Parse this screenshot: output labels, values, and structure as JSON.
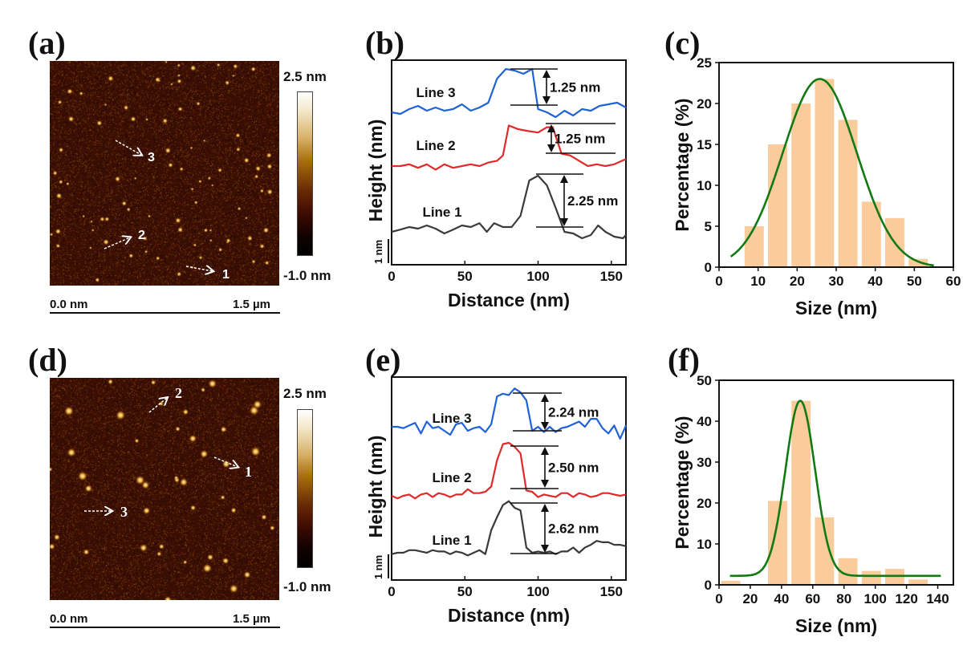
{
  "panels": {
    "a": {
      "label": "(a)",
      "colorbar_max": "2.5 nm",
      "colorbar_min": "-1.0 nm",
      "scale_start": "0.0 nm",
      "scale_end": "1.5 µm",
      "markers": [
        "1",
        "2",
        "3"
      ]
    },
    "b": {
      "label": "(b)"
    },
    "c": {
      "label": "(c)"
    },
    "d": {
      "label": "(d)",
      "colorbar_max": "2.5 nm",
      "colorbar_min": "-1.0 nm",
      "scale_start": "0.0 nm",
      "scale_end": "1.5 µm",
      "markers": [
        "1",
        "2",
        "3"
      ]
    },
    "e": {
      "label": "(e)"
    },
    "f": {
      "label": "(f)"
    }
  },
  "chart_data": [
    {
      "id": "b",
      "type": "line",
      "xlabel": "Distance (nm)",
      "ylabel": "Height (nm)",
      "xlim": [
        0,
        160
      ],
      "xticks": [
        0,
        50,
        100,
        150
      ],
      "scale_bar_label": "1 nm",
      "series": [
        {
          "name": "Line 3",
          "color": "#1f63d6",
          "offset": 2,
          "x": [
            0,
            6,
            12,
            18,
            24,
            30,
            36,
            42,
            48,
            54,
            60,
            66,
            72,
            78,
            84,
            90,
            96,
            100,
            106,
            112,
            118,
            124,
            130,
            136,
            142,
            148,
            154,
            160
          ],
          "y": [
            0.0,
            -0.05,
            0.1,
            0.2,
            0.05,
            0.15,
            0.05,
            0.1,
            0.25,
            0.05,
            0.15,
            0.3,
            1.05,
            1.35,
            1.3,
            1.2,
            1.35,
            0.1,
            0.0,
            -0.15,
            0.05,
            -0.1,
            0.1,
            0.05,
            0.2,
            0.25,
            0.3,
            0.15
          ],
          "annotation": "1.25 nm"
        },
        {
          "name": "Line 2",
          "color": "#e02a2a",
          "offset": 1,
          "x": [
            0,
            6,
            12,
            18,
            24,
            30,
            36,
            42,
            48,
            54,
            60,
            66,
            72,
            76,
            80,
            86,
            92,
            100,
            106,
            110,
            116,
            122,
            128,
            134,
            140,
            146,
            152,
            160
          ],
          "y": [
            0.0,
            0.0,
            0.05,
            -0.05,
            0.05,
            -0.1,
            0.05,
            -0.05,
            0.0,
            0.05,
            0.0,
            0.1,
            0.15,
            0.3,
            1.15,
            1.05,
            1.0,
            0.95,
            1.1,
            1.1,
            0.35,
            0.3,
            0.15,
            0.0,
            0.05,
            0.0,
            0.05,
            0.2
          ],
          "annotation": "1.25 nm"
        },
        {
          "name": "Line 1",
          "color": "#3a3a3a",
          "offset": 0,
          "x": [
            0,
            6,
            12,
            18,
            24,
            30,
            36,
            42,
            48,
            54,
            60,
            65,
            70,
            76,
            82,
            88,
            94,
            100,
            106,
            112,
            118,
            124,
            130,
            136,
            141,
            146,
            152,
            158,
            160
          ],
          "y": [
            0.35,
            0.42,
            0.5,
            0.45,
            0.55,
            0.45,
            0.3,
            0.42,
            0.55,
            0.5,
            0.62,
            0.35,
            0.62,
            0.5,
            0.5,
            0.85,
            1.95,
            2.1,
            1.8,
            1.1,
            0.35,
            0.3,
            0.15,
            0.25,
            0.55,
            0.35,
            0.2,
            0.15,
            0.25
          ],
          "annotation": "2.25 nm"
        }
      ]
    },
    {
      "id": "c",
      "type": "bar",
      "xlabel": "Size (nm)",
      "ylabel": "Percentage (%)",
      "xlim": [
        0,
        60
      ],
      "ylim": [
        0,
        25
      ],
      "xticks": [
        0,
        10,
        20,
        30,
        40,
        50,
        60
      ],
      "yticks": [
        0,
        5,
        10,
        15,
        20,
        25
      ],
      "bar_color": "#facb9b",
      "categories": [
        9,
        15,
        21,
        27,
        33,
        39,
        45,
        51
      ],
      "values": [
        5,
        15,
        20,
        23,
        18,
        8,
        6,
        1
      ],
      "fit": {
        "type": "gaussian",
        "color": "#117a11",
        "center": 25.8,
        "amplitude": 23,
        "sigma": 9.5,
        "baseline": 0,
        "xrange": [
          3,
          55
        ]
      }
    },
    {
      "id": "e",
      "type": "line",
      "xlabel": "Distance (nm)",
      "ylabel": "Height (nm)",
      "xlim": [
        0,
        160
      ],
      "xticks": [
        0,
        50,
        100,
        150
      ],
      "scale_bar_label": "1 nm",
      "series": [
        {
          "name": "Line 3",
          "color": "#1f63d6",
          "offset": 2,
          "x": [
            0,
            4,
            8,
            12,
            16,
            20,
            24,
            28,
            32,
            36,
            40,
            44,
            48,
            52,
            56,
            60,
            64,
            68,
            72,
            76,
            80,
            84,
            88,
            92,
            96,
            100,
            104,
            108,
            112,
            116,
            120,
            124,
            128,
            132,
            136,
            140,
            144,
            148,
            152,
            156,
            160
          ],
          "y": [
            0.15,
            0.15,
            0.1,
            0.2,
            0.3,
            -0.1,
            0.35,
            0.1,
            0.15,
            0.0,
            -0.15,
            0.25,
            0.3,
            0.0,
            0.1,
            0.15,
            -0.05,
            0.25,
            1.3,
            1.4,
            1.35,
            1.6,
            1.45,
            1.15,
            0.0,
            0.15,
            -0.05,
            0.15,
            -0.05,
            0.1,
            0.15,
            0.25,
            0.35,
            0.15,
            0.45,
            0.45,
            0.1,
            -0.1,
            0.2,
            -0.3,
            0.2
          ],
          "annotation": "2.24 nm"
        },
        {
          "name": "Line 2",
          "color": "#e02a2a",
          "offset": 1,
          "x": [
            0,
            4,
            8,
            12,
            16,
            20,
            24,
            28,
            32,
            36,
            40,
            44,
            48,
            52,
            56,
            60,
            64,
            68,
            72,
            76,
            80,
            84,
            88,
            92,
            96,
            100,
            104,
            108,
            112,
            116,
            120,
            124,
            128,
            132,
            136,
            140,
            144,
            148,
            152,
            156,
            160
          ],
          "y": [
            0.0,
            -0.1,
            0.0,
            0.05,
            -0.1,
            0.05,
            0.1,
            -0.05,
            0.1,
            0.05,
            -0.05,
            0.05,
            0.05,
            0.25,
            0.1,
            0.1,
            0.15,
            0.35,
            1.35,
            1.95,
            2.0,
            1.85,
            1.6,
            0.2,
            0.15,
            -0.05,
            0.05,
            0.0,
            -0.05,
            0.1,
            0.1,
            -0.05,
            0.1,
            0.05,
            -0.05,
            0.0,
            0.1,
            0.1,
            0.05,
            0.0,
            0.05
          ],
          "annotation": "2.50 nm"
        },
        {
          "name": "Line 1",
          "color": "#3a3a3a",
          "offset": 0,
          "x": [
            0,
            4,
            8,
            12,
            16,
            20,
            24,
            28,
            32,
            36,
            40,
            44,
            48,
            52,
            56,
            60,
            64,
            68,
            72,
            76,
            80,
            84,
            88,
            92,
            96,
            100,
            104,
            108,
            112,
            116,
            120,
            124,
            128,
            132,
            136,
            140,
            144,
            148,
            152,
            156,
            160
          ],
          "y": [
            0.1,
            0.15,
            0.15,
            0.25,
            0.25,
            0.2,
            0.15,
            0.25,
            0.2,
            0.2,
            0.1,
            0.2,
            0.15,
            0.05,
            0.15,
            0.25,
            0.1,
            1.0,
            1.5,
            1.95,
            2.1,
            1.85,
            1.75,
            0.35,
            0.15,
            0.2,
            0.15,
            0.2,
            0.1,
            0.2,
            0.2,
            0.35,
            0.15,
            0.35,
            0.45,
            0.6,
            0.55,
            0.55,
            0.45,
            0.45,
            0.4
          ],
          "annotation": "2.62 nm"
        }
      ]
    },
    {
      "id": "f",
      "type": "bar",
      "xlabel": "Size (nm)",
      "ylabel": "Percentage (%)",
      "xlim": [
        0,
        150
      ],
      "ylim": [
        0,
        50
      ],
      "xticks": [
        0,
        20,
        40,
        60,
        80,
        100,
        120,
        140
      ],
      "yticks": [
        0,
        10,
        20,
        30,
        40,
        50
      ],
      "bar_color": "#facb9b",
      "categories": [
        7.5,
        22.5,
        37.5,
        52.5,
        67.5,
        82.5,
        97.5,
        112.5,
        127.5,
        142.5
      ],
      "values": [
        1.0,
        0.2,
        20.5,
        45.0,
        16.5,
        6.5,
        3.4,
        3.9,
        1.3,
        0.2
      ],
      "fit": {
        "type": "gaussian",
        "color": "#117a11",
        "center": 52,
        "amplitude": 42.8,
        "sigma": 9.5,
        "baseline": 2.2,
        "xrange": [
          7,
          142
        ]
      }
    }
  ]
}
